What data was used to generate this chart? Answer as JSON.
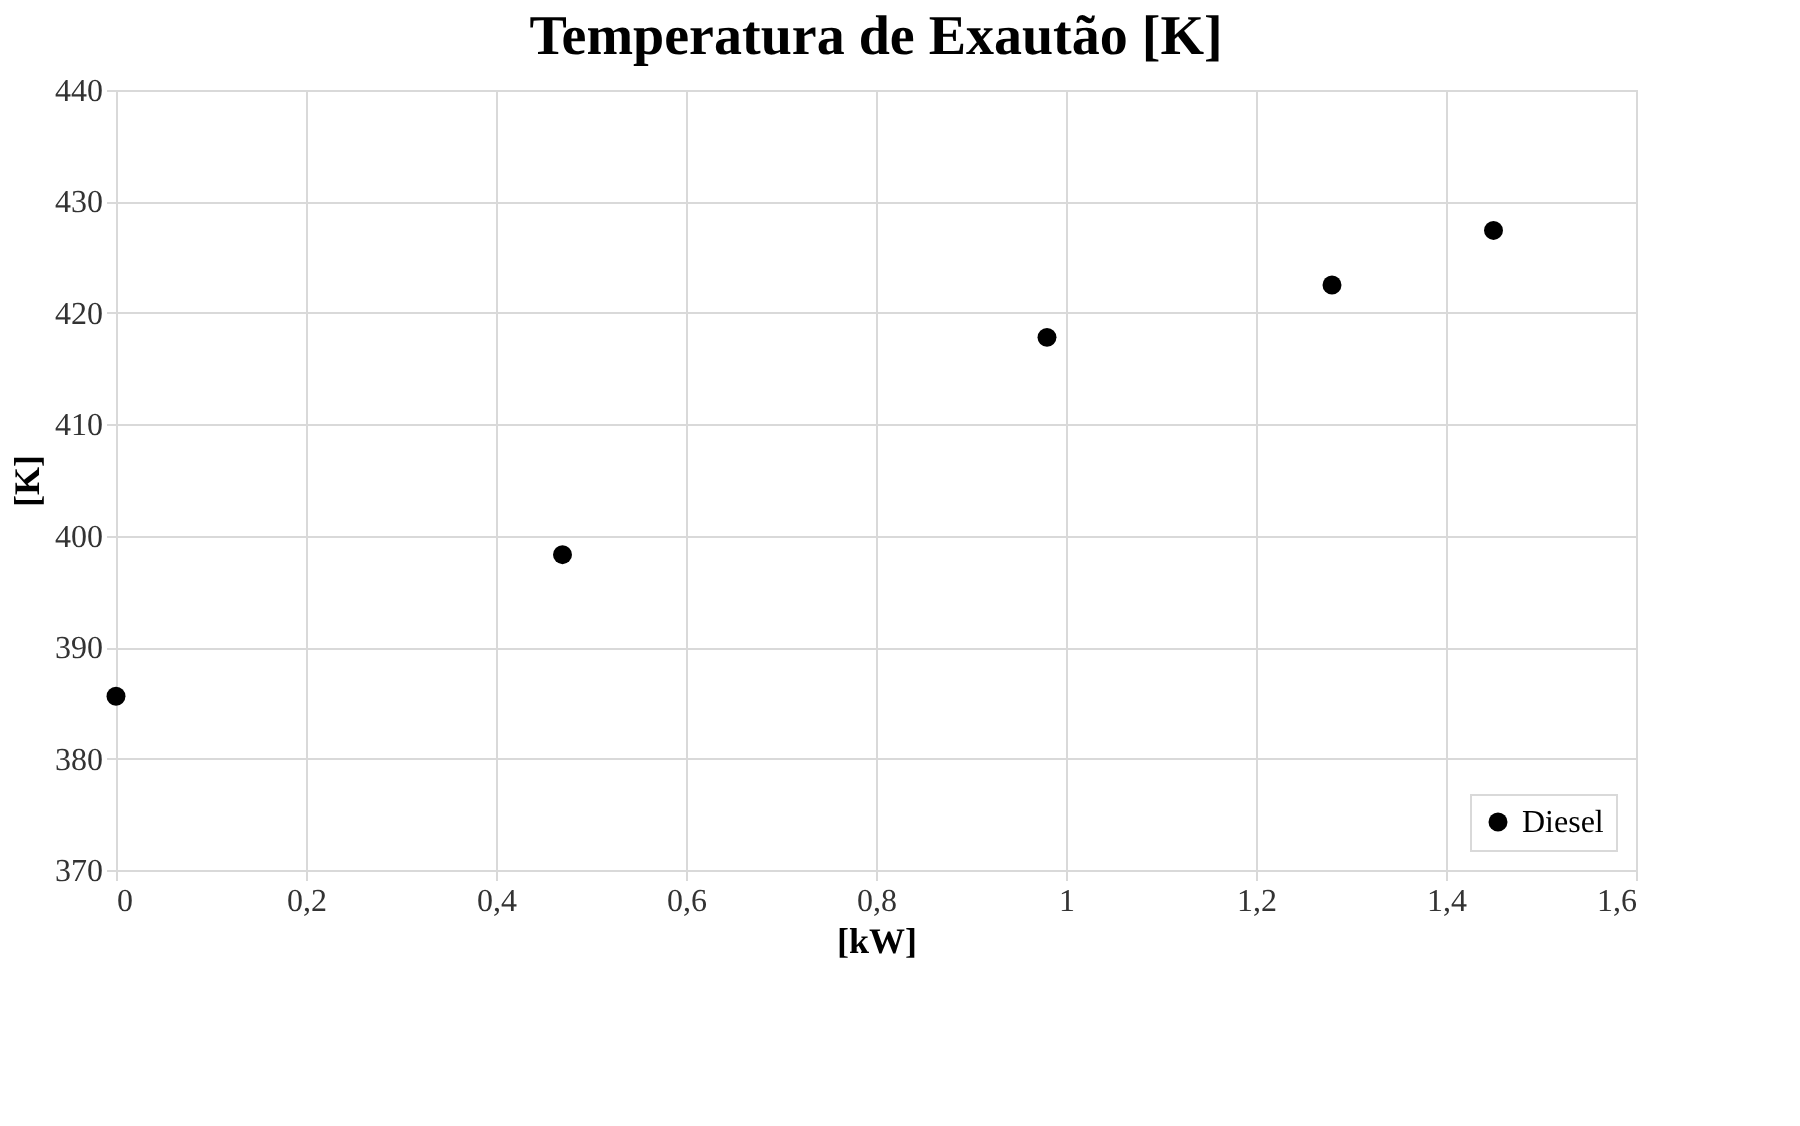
{
  "chart_data": {
    "type": "scatter",
    "title": "Temperatura de Exautão [K]",
    "xlabel": "[kW]",
    "ylabel": "[K]",
    "x": [
      0,
      0.47,
      0.98,
      1.28,
      1.45
    ],
    "series": [
      {
        "name": "Diesel",
        "color": "#000000",
        "values": [
          385.6,
          398.3,
          417.8,
          422.5,
          427.4
        ]
      }
    ],
    "xlim": [
      0,
      1.6
    ],
    "xticks": [
      0,
      {
        "value": 0.2,
        "label": "0,2"
      },
      {
        "value": 0.4,
        "label": "0,4"
      },
      {
        "value": 0.6,
        "label": "0,6"
      },
      {
        "value": 0.8,
        "label": "0,8"
      },
      1,
      {
        "value": 1.2,
        "label": "1,2"
      },
      {
        "value": 1.4,
        "label": "1,4"
      },
      {
        "value": 1.6,
        "label": "1,6"
      }
    ],
    "ylim": [
      370,
      440
    ],
    "yticks": [
      370,
      380,
      390,
      400,
      410,
      420,
      430,
      440
    ],
    "grid": true,
    "legend": "bottom right",
    "marker": "circle"
  }
}
